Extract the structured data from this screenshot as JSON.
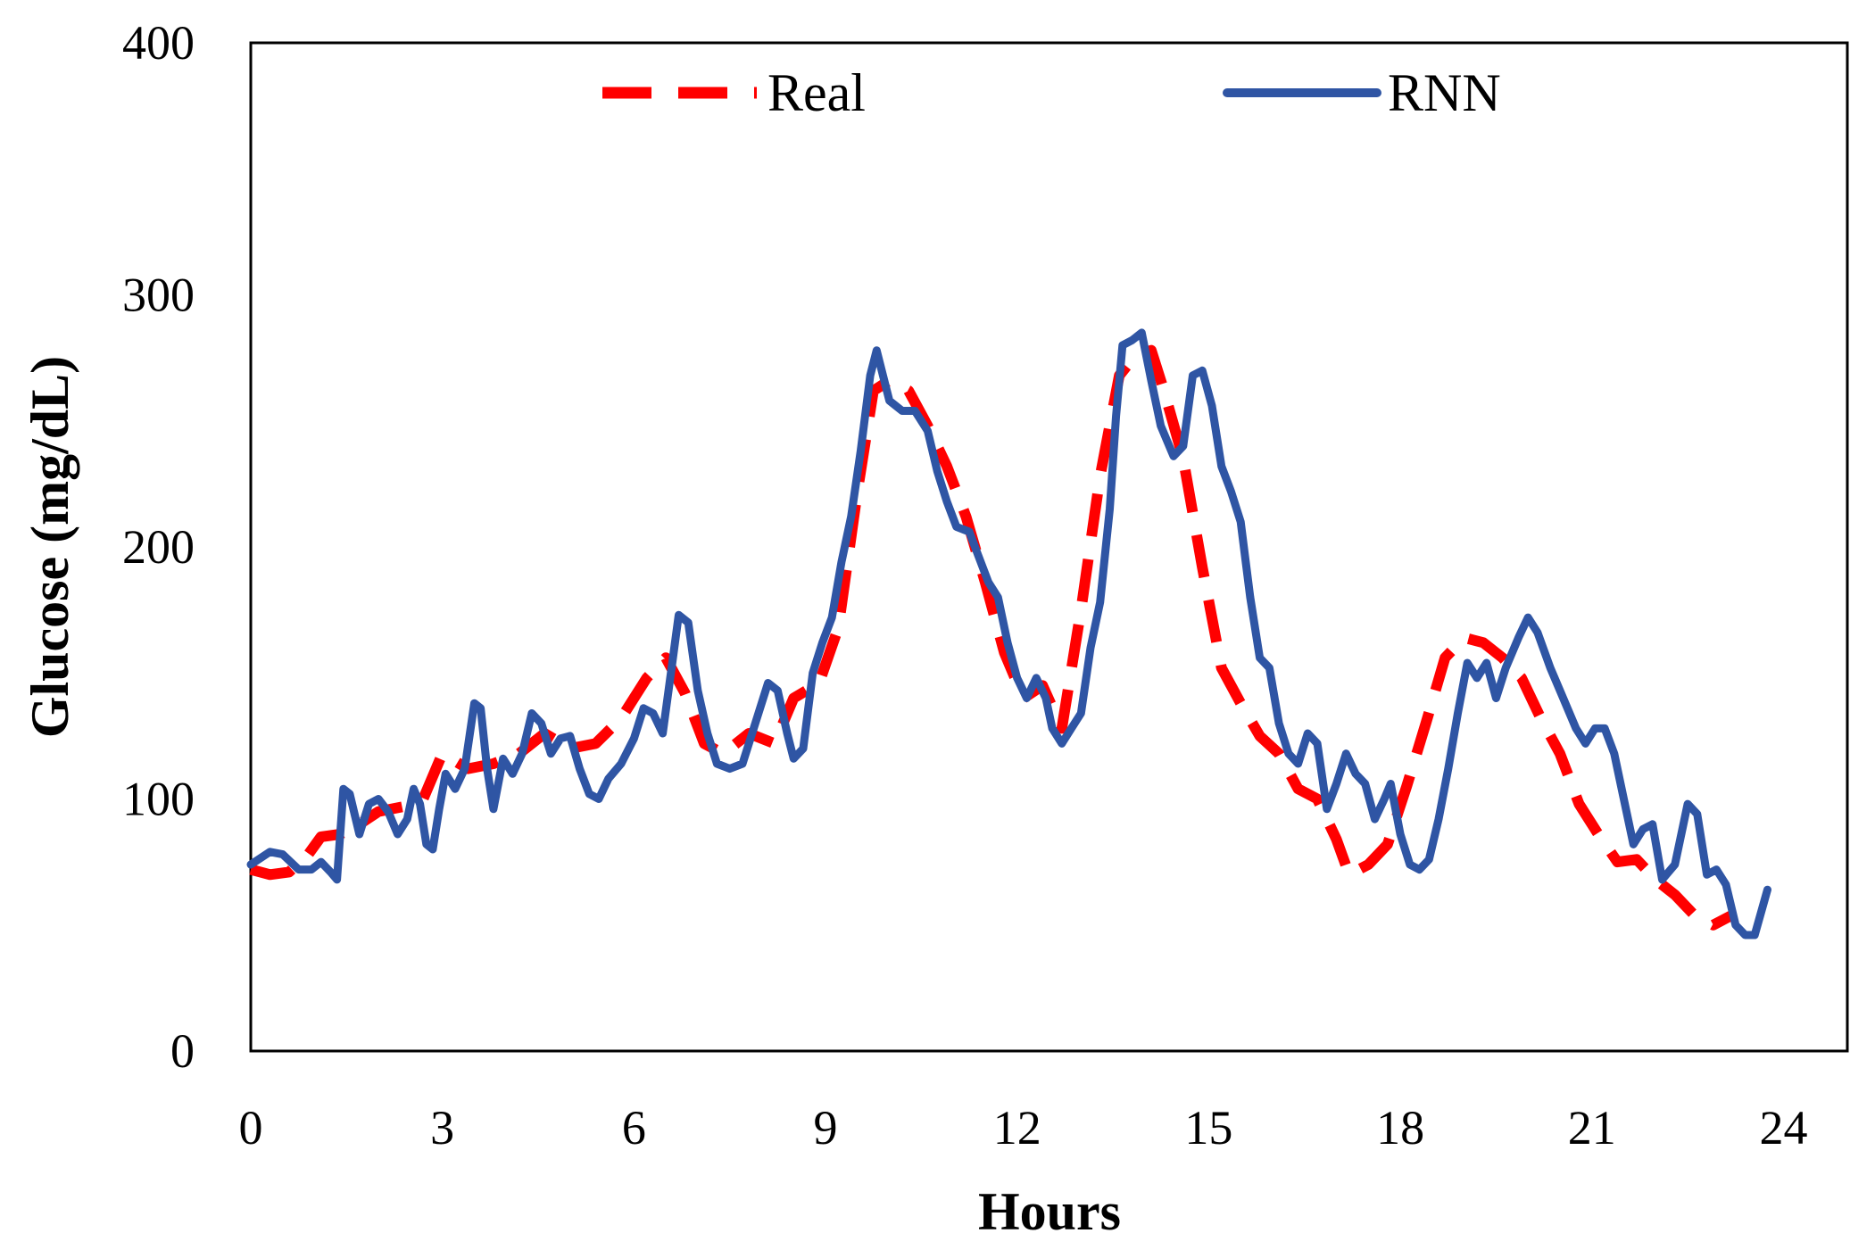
{
  "chart_data": {
    "type": "line",
    "title": "",
    "xlabel": "Hours",
    "ylabel": "Glucose (mg/dL)",
    "xlim": [
      0,
      25
    ],
    "ylim": [
      0,
      400
    ],
    "xticks": [
      0,
      3,
      6,
      9,
      12,
      15,
      18,
      21,
      24
    ],
    "yticks": [
      0,
      100,
      200,
      300,
      400
    ],
    "x_tick_labels": [
      "0",
      "3",
      "6",
      "9",
      "12",
      "15",
      "18",
      "21",
      "24"
    ],
    "y_tick_labels": [
      "0",
      "100",
      "200",
      "300",
      "400"
    ],
    "grid": false,
    "legend": "top",
    "series": [
      {
        "name": "Real",
        "color": "#ff0000",
        "style": "dashed",
        "points": [
          [
            0,
            72
          ],
          [
            0.3,
            70
          ],
          [
            0.6,
            71
          ],
          [
            0.9,
            78
          ],
          [
            1.1,
            85
          ],
          [
            1.4,
            86
          ],
          [
            1.7,
            90
          ],
          [
            2.0,
            95
          ],
          [
            2.4,
            97
          ],
          [
            2.7,
            100
          ],
          [
            3.0,
            118
          ],
          [
            3.4,
            112
          ],
          [
            3.8,
            114
          ],
          [
            4.2,
            118
          ],
          [
            4.6,
            126
          ],
          [
            5.0,
            120
          ],
          [
            5.4,
            122
          ],
          [
            5.8,
            132
          ],
          [
            6.2,
            148
          ],
          [
            6.5,
            156
          ],
          [
            6.8,
            142
          ],
          [
            7.1,
            122
          ],
          [
            7.4,
            118
          ],
          [
            7.8,
            126
          ],
          [
            8.2,
            122
          ],
          [
            8.5,
            140
          ],
          [
            8.9,
            146
          ],
          [
            9.2,
            168
          ],
          [
            9.5,
            222
          ],
          [
            9.75,
            262
          ],
          [
            10.0,
            266
          ],
          [
            10.3,
            262
          ],
          [
            10.6,
            248
          ],
          [
            10.9,
            232
          ],
          [
            11.2,
            212
          ],
          [
            11.5,
            186
          ],
          [
            11.8,
            158
          ],
          [
            12.1,
            140
          ],
          [
            12.4,
            145
          ],
          [
            12.7,
            128
          ],
          [
            13.0,
            175
          ],
          [
            13.3,
            228
          ],
          [
            13.6,
            268
          ],
          [
            13.85,
            276
          ],
          [
            14.1,
            278
          ],
          [
            14.3,
            262
          ],
          [
            14.6,
            235
          ],
          [
            14.9,
            192
          ],
          [
            15.2,
            152
          ],
          [
            15.5,
            138
          ],
          [
            15.8,
            125
          ],
          [
            16.1,
            118
          ],
          [
            16.4,
            104
          ],
          [
            16.7,
            100
          ],
          [
            17.0,
            84
          ],
          [
            17.2,
            70
          ],
          [
            17.5,
            74
          ],
          [
            17.8,
            82
          ],
          [
            18.1,
            105
          ],
          [
            18.4,
            130
          ],
          [
            18.7,
            156
          ],
          [
            19.0,
            164
          ],
          [
            19.3,
            162
          ],
          [
            19.6,
            156
          ],
          [
            19.9,
            148
          ],
          [
            20.2,
            132
          ],
          [
            20.5,
            118
          ],
          [
            20.8,
            98
          ],
          [
            21.1,
            86
          ],
          [
            21.4,
            75
          ],
          [
            21.7,
            76
          ],
          [
            22.0,
            68
          ],
          [
            22.3,
            62
          ],
          [
            22.6,
            54
          ],
          [
            22.9,
            50
          ],
          [
            23.2,
            54
          ]
        ]
      },
      {
        "name": "RNN",
        "color": "#2f55a4",
        "style": "solid",
        "points": [
          [
            0,
            74
          ],
          [
            0.3,
            79
          ],
          [
            0.5,
            78
          ],
          [
            0.75,
            72
          ],
          [
            0.95,
            72
          ],
          [
            1.1,
            75
          ],
          [
            1.25,
            71
          ],
          [
            1.35,
            68
          ],
          [
            1.45,
            104
          ],
          [
            1.55,
            102
          ],
          [
            1.7,
            86
          ],
          [
            1.85,
            98
          ],
          [
            2.0,
            100
          ],
          [
            2.15,
            95
          ],
          [
            2.3,
            86
          ],
          [
            2.45,
            92
          ],
          [
            2.55,
            104
          ],
          [
            2.65,
            98
          ],
          [
            2.75,
            82
          ],
          [
            2.85,
            80
          ],
          [
            2.95,
            96
          ],
          [
            3.05,
            110
          ],
          [
            3.2,
            104
          ],
          [
            3.35,
            112
          ],
          [
            3.5,
            138
          ],
          [
            3.6,
            136
          ],
          [
            3.7,
            112
          ],
          [
            3.8,
            96
          ],
          [
            3.95,
            116
          ],
          [
            4.1,
            110
          ],
          [
            4.25,
            118
          ],
          [
            4.4,
            134
          ],
          [
            4.55,
            130
          ],
          [
            4.7,
            118
          ],
          [
            4.85,
            124
          ],
          [
            5.0,
            125
          ],
          [
            5.15,
            112
          ],
          [
            5.3,
            102
          ],
          [
            5.45,
            100
          ],
          [
            5.6,
            108
          ],
          [
            5.8,
            114
          ],
          [
            6.0,
            124
          ],
          [
            6.15,
            136
          ],
          [
            6.3,
            134
          ],
          [
            6.45,
            126
          ],
          [
            6.6,
            154
          ],
          [
            6.7,
            173
          ],
          [
            6.85,
            170
          ],
          [
            7.0,
            143
          ],
          [
            7.15,
            126
          ],
          [
            7.3,
            114
          ],
          [
            7.5,
            112
          ],
          [
            7.7,
            114
          ],
          [
            7.9,
            130
          ],
          [
            8.1,
            146
          ],
          [
            8.25,
            143
          ],
          [
            8.4,
            126
          ],
          [
            8.5,
            116
          ],
          [
            8.65,
            120
          ],
          [
            8.8,
            150
          ],
          [
            8.95,
            162
          ],
          [
            9.1,
            172
          ],
          [
            9.25,
            194
          ],
          [
            9.4,
            212
          ],
          [
            9.55,
            238
          ],
          [
            9.7,
            268
          ],
          [
            9.8,
            278
          ],
          [
            9.9,
            268
          ],
          [
            10.0,
            258
          ],
          [
            10.2,
            254
          ],
          [
            10.4,
            254
          ],
          [
            10.6,
            246
          ],
          [
            10.75,
            230
          ],
          [
            10.9,
            218
          ],
          [
            11.05,
            208
          ],
          [
            11.25,
            206
          ],
          [
            11.4,
            196
          ],
          [
            11.55,
            186
          ],
          [
            11.7,
            180
          ],
          [
            11.85,
            162
          ],
          [
            12.0,
            148
          ],
          [
            12.15,
            140
          ],
          [
            12.3,
            148
          ],
          [
            12.45,
            140
          ],
          [
            12.55,
            128
          ],
          [
            12.7,
            122
          ],
          [
            12.85,
            128
          ],
          [
            13.0,
            134
          ],
          [
            13.15,
            160
          ],
          [
            13.3,
            178
          ],
          [
            13.45,
            215
          ],
          [
            13.55,
            252
          ],
          [
            13.65,
            280
          ],
          [
            13.8,
            282
          ],
          [
            13.95,
            285
          ],
          [
            14.1,
            266
          ],
          [
            14.25,
            248
          ],
          [
            14.45,
            236
          ],
          [
            14.6,
            240
          ],
          [
            14.75,
            268
          ],
          [
            14.9,
            270
          ],
          [
            15.05,
            256
          ],
          [
            15.2,
            232
          ],
          [
            15.35,
            222
          ],
          [
            15.5,
            210
          ],
          [
            15.65,
            180
          ],
          [
            15.8,
            156
          ],
          [
            15.95,
            152
          ],
          [
            16.1,
            130
          ],
          [
            16.25,
            118
          ],
          [
            16.4,
            114
          ],
          [
            16.55,
            126
          ],
          [
            16.7,
            122
          ],
          [
            16.85,
            96
          ],
          [
            17.0,
            106
          ],
          [
            17.15,
            118
          ],
          [
            17.3,
            110
          ],
          [
            17.45,
            106
          ],
          [
            17.6,
            92
          ],
          [
            17.75,
            100
          ],
          [
            17.85,
            106
          ],
          [
            18.0,
            86
          ],
          [
            18.15,
            74
          ],
          [
            18.3,
            72
          ],
          [
            18.45,
            76
          ],
          [
            18.6,
            92
          ],
          [
            18.75,
            112
          ],
          [
            18.9,
            134
          ],
          [
            19.05,
            154
          ],
          [
            19.2,
            148
          ],
          [
            19.35,
            154
          ],
          [
            19.5,
            140
          ],
          [
            19.65,
            152
          ],
          [
            19.85,
            164
          ],
          [
            20.0,
            172
          ],
          [
            20.15,
            166
          ],
          [
            20.35,
            152
          ],
          [
            20.55,
            140
          ],
          [
            20.75,
            128
          ],
          [
            20.9,
            122
          ],
          [
            21.05,
            128
          ],
          [
            21.2,
            128
          ],
          [
            21.35,
            118
          ],
          [
            21.5,
            100
          ],
          [
            21.65,
            82
          ],
          [
            21.8,
            88
          ],
          [
            21.95,
            90
          ],
          [
            22.1,
            68
          ],
          [
            22.3,
            74
          ],
          [
            22.5,
            98
          ],
          [
            22.65,
            94
          ],
          [
            22.8,
            70
          ],
          [
            22.95,
            72
          ],
          [
            23.1,
            66
          ],
          [
            23.25,
            50
          ],
          [
            23.4,
            46
          ],
          [
            23.55,
            46
          ],
          [
            23.75,
            64
          ]
        ]
      }
    ]
  }
}
